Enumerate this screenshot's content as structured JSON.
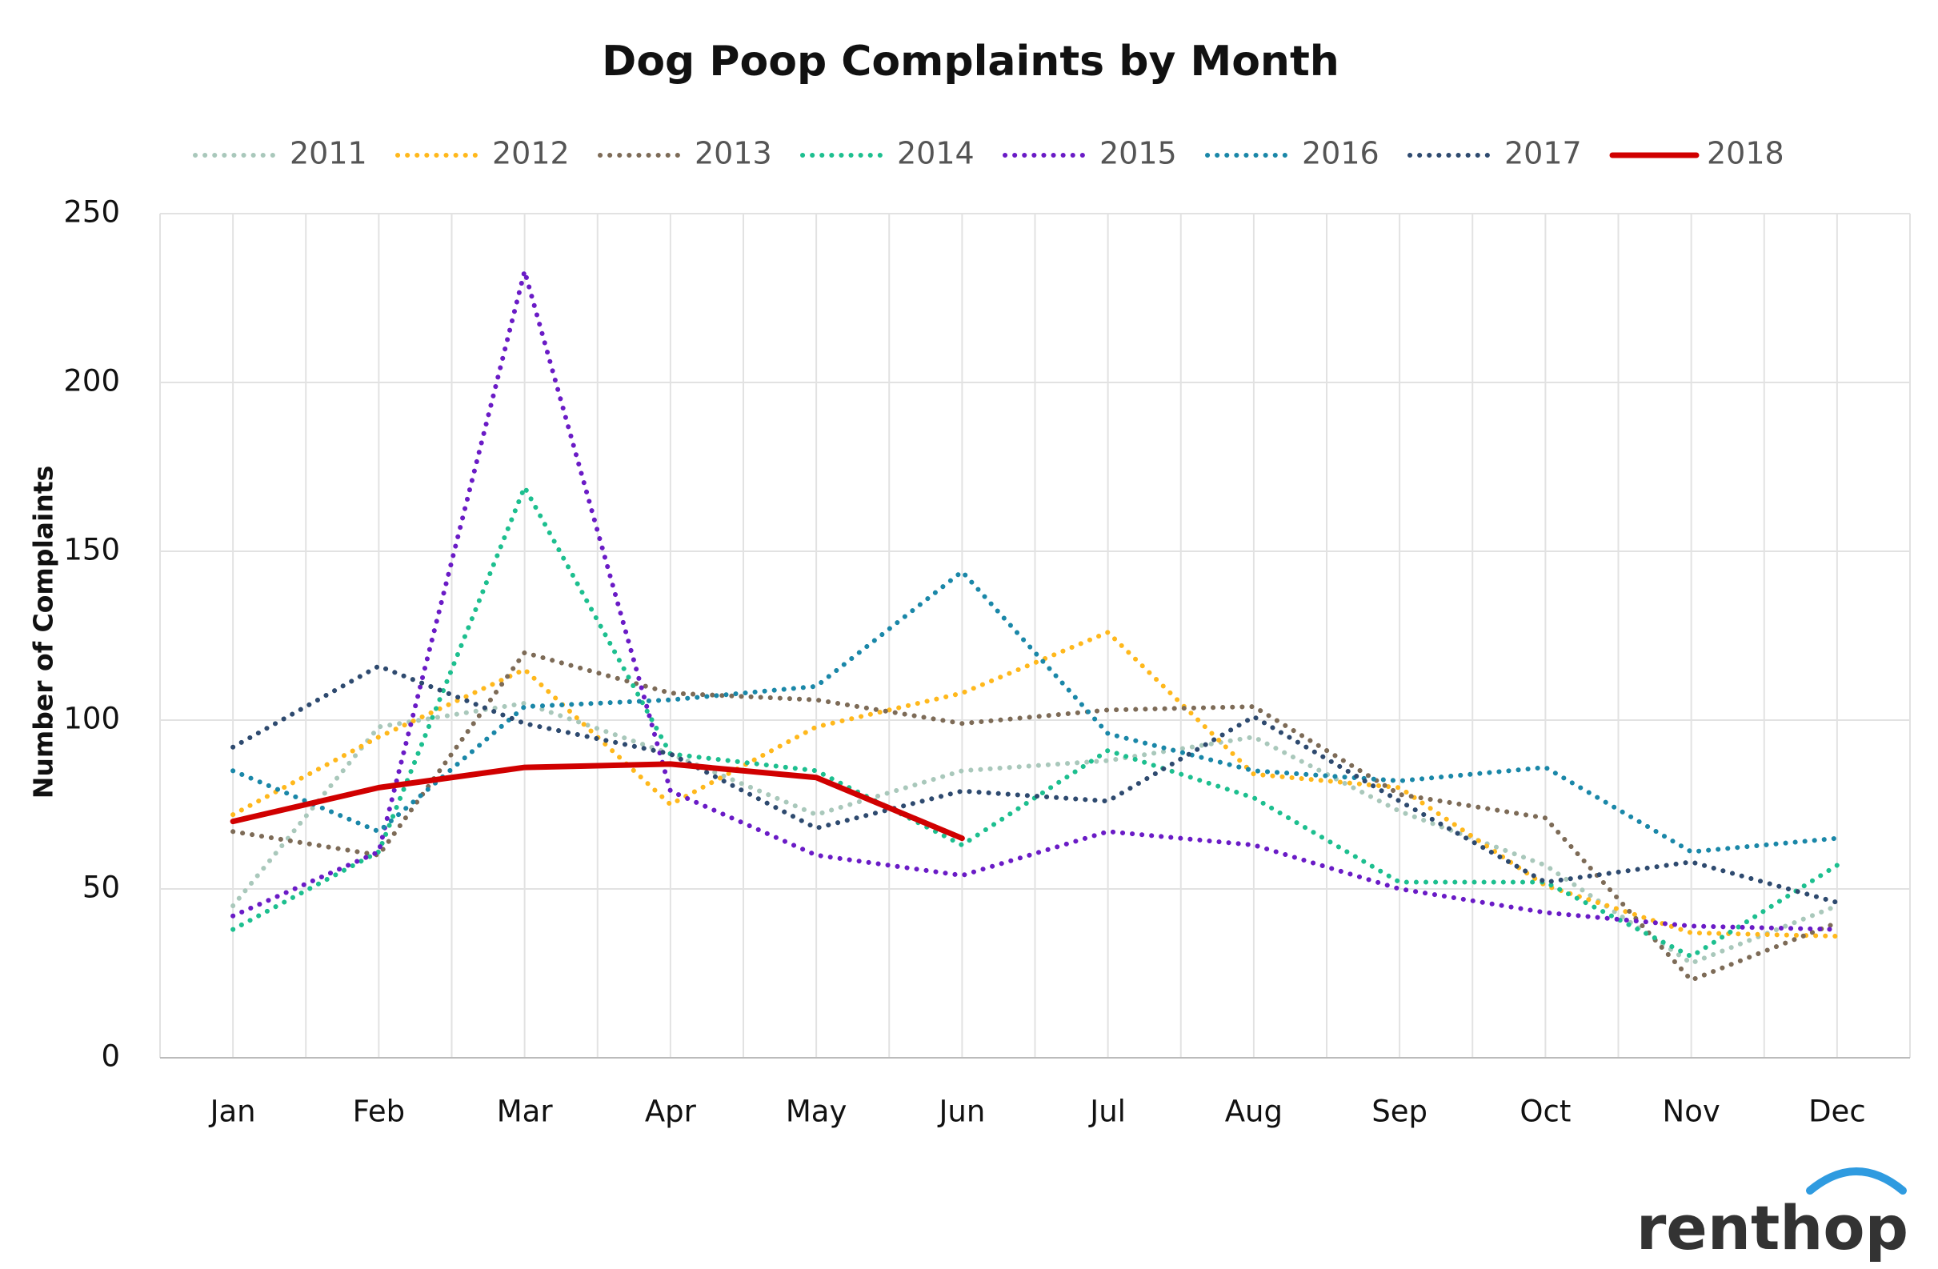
{
  "chart_data": {
    "type": "line",
    "title": "Dog Poop Complaints by Month",
    "y_label": "Number of Complaints",
    "brand": "renthop",
    "categories": [
      "Jan",
      "Feb",
      "Mar",
      "Apr",
      "May",
      "Jun",
      "Jul",
      "Aug",
      "Sep",
      "Oct",
      "Nov",
      "Dec"
    ],
    "series": [
      {
        "name": "2011",
        "color": "#a9c8bb",
        "line_style": "dotted",
        "values": [
          45,
          98,
          105,
          90,
          72,
          85,
          88,
          95,
          73,
          57,
          28,
          45
        ]
      },
      {
        "name": "2012",
        "color": "#ffb81c",
        "line_style": "dotted",
        "values": [
          72,
          95,
          115,
          75,
          98,
          108,
          126,
          84,
          80,
          51,
          37,
          36
        ]
      },
      {
        "name": "2013",
        "color": "#7d6b57",
        "line_style": "dotted",
        "values": [
          67,
          60,
          120,
          108,
          106,
          99,
          103,
          104,
          78,
          71,
          23,
          40
        ]
      },
      {
        "name": "2014",
        "color": "#1dbf8f",
        "line_style": "dotted",
        "values": [
          38,
          61,
          169,
          90,
          85,
          63,
          91,
          77,
          52,
          52,
          30,
          57
        ]
      },
      {
        "name": "2015",
        "color": "#6a1bc6",
        "line_style": "dotted",
        "values": [
          42,
          61,
          233,
          79,
          60,
          54,
          67,
          63,
          50,
          43,
          39,
          38
        ]
      },
      {
        "name": "2016",
        "color": "#1a87a8",
        "line_style": "dotted",
        "values": [
          85,
          67,
          104,
          106,
          110,
          144,
          96,
          85,
          82,
          86,
          61,
          65
        ]
      },
      {
        "name": "2017",
        "color": "#2e4a6f",
        "line_style": "dotted",
        "values": [
          92,
          116,
          99,
          90,
          68,
          79,
          76,
          101,
          76,
          52,
          58,
          46
        ]
      },
      {
        "name": "2018",
        "color": "#d00000",
        "line_style": "solid",
        "values": [
          70,
          80,
          86,
          87,
          83,
          65,
          null,
          null,
          null,
          null,
          null,
          null
        ]
      }
    ],
    "ylim": [
      0,
      250
    ],
    "yticks": [
      0,
      50,
      100,
      150,
      200,
      250
    ],
    "grid": true,
    "legend": "top"
  }
}
